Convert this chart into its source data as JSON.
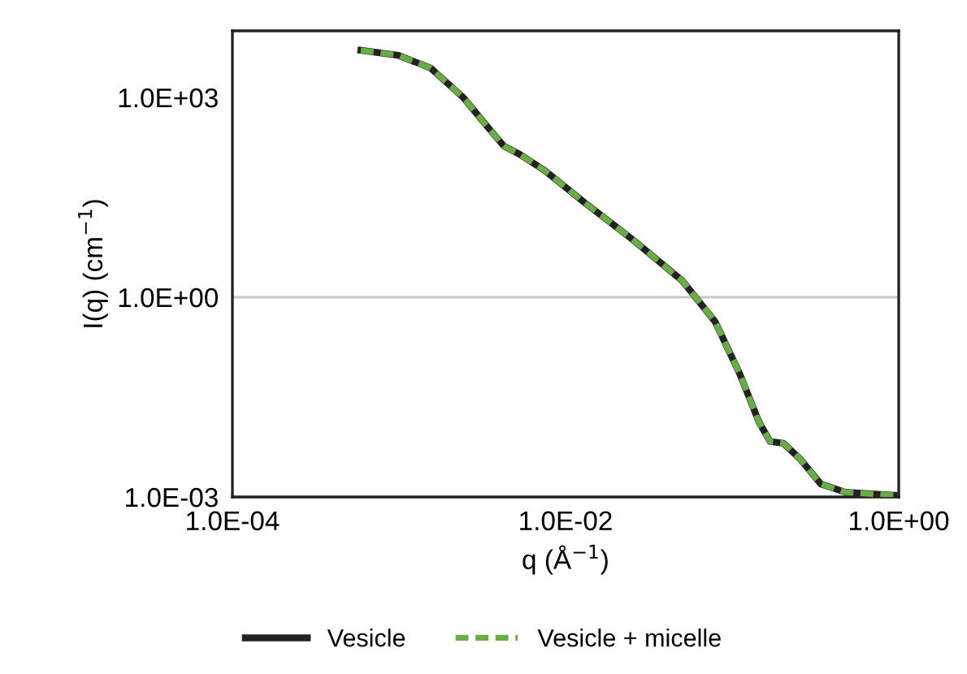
{
  "chart_data": {
    "type": "line",
    "xlabel": "q (Å$^{−1}$)",
    "ylabel": "I(q) (cm$^{−1}$)",
    "log": "xy",
    "xlim": [
      0.0001,
      1
    ],
    "xticks": [
      {
        "value": 0.0001,
        "label": "1.0E-04"
      },
      {
        "value": 0.01,
        "label": "1.0E-02"
      },
      {
        "value": 1,
        "label": "1.0E+00"
      }
    ],
    "ylim": [
      0.001,
      10000
    ],
    "yticks": [
      {
        "value": 0.001,
        "label": "1.0E-03"
      },
      {
        "value": 1,
        "label": "1.0E+00"
      },
      {
        "value": 1000,
        "label": "1.0E+03"
      }
    ],
    "x": [
      0.00059,
      0.00099,
      0.00155,
      0.00243,
      0.0034,
      0.00426,
      0.0053,
      0.0075,
      0.0131,
      0.0257,
      0.0504,
      0.079,
      0.111,
      0.145,
      0.169,
      0.203,
      0.254,
      0.34,
      0.477,
      0.94
    ],
    "series": [
      {
        "name": "Vesicle",
        "color": "#222222",
        "line_style": "solid",
        "values": [
          5100,
          4300,
          2760,
          1000,
          363,
          186,
          140,
          80,
          26,
          7.1,
          1.75,
          0.43,
          0.071,
          0.0133,
          0.0068,
          0.0064,
          0.0038,
          0.00157,
          0.00118,
          0.00106
        ]
      },
      {
        "name": "Vesicle + micelle",
        "color": "#6aac46",
        "line_style": "dashed",
        "values": [
          5100,
          4300,
          2760,
          1000,
          363,
          186,
          140,
          80,
          26,
          7.1,
          1.75,
          0.43,
          0.071,
          0.0133,
          0.0068,
          0.0064,
          0.0038,
          0.00157,
          0.00118,
          0.00106
        ]
      }
    ],
    "ref_lines": [
      {
        "axis": "y",
        "value": 1,
        "color": "#c8c8c8"
      }
    ],
    "grid": false,
    "legend": "bottom"
  }
}
